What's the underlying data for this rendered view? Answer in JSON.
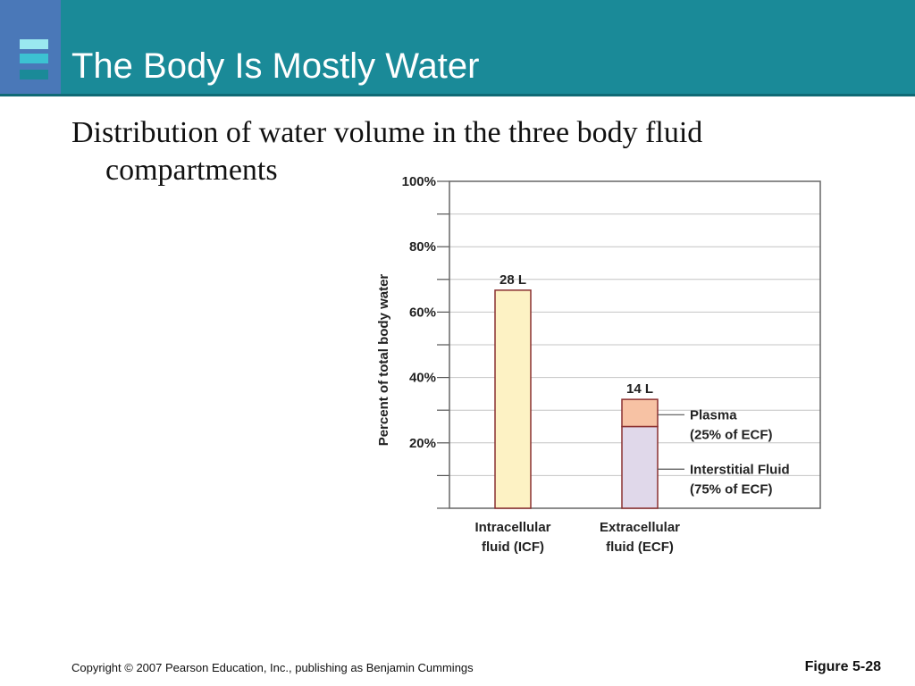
{
  "header": {
    "title": "The Body Is Mostly Water",
    "colors": {
      "bar": "#1a8a98",
      "logo": "#4a78b8"
    }
  },
  "body": {
    "subtitle": "Distribution of water volume in the three body fluid compartments"
  },
  "chart_data": {
    "type": "bar",
    "stacked": true,
    "ylabel": "Percent of total body water",
    "ylim": [
      0,
      100
    ],
    "y_ticks": [
      "100%",
      "80%",
      "60%",
      "40%",
      "20%"
    ],
    "y_tick_values": [
      100,
      80,
      60,
      40,
      20
    ],
    "grid": true,
    "categories": [
      [
        "Intracellular",
        "fluid (ICF)"
      ],
      [
        "Extracellular",
        "fluid (ECF)"
      ]
    ],
    "bars": [
      {
        "total_label": "28 L",
        "segments": [
          {
            "value": 66.7,
            "color": "#fdf2c4"
          }
        ]
      },
      {
        "total_label": "14 L",
        "segments": [
          {
            "value": 25.0,
            "color": "#e0d8ea",
            "label": [
              "Interstitial Fluid",
              "(75% of ECF)"
            ]
          },
          {
            "value": 8.3,
            "color": "#f7c2a4",
            "label": [
              "Plasma",
              "(25% of ECF)"
            ]
          }
        ]
      }
    ]
  },
  "footer": {
    "copyright": "Copyright © 2007 Pearson Education, Inc., publishing as Benjamin Cummings",
    "figure": "Figure 5-28"
  }
}
